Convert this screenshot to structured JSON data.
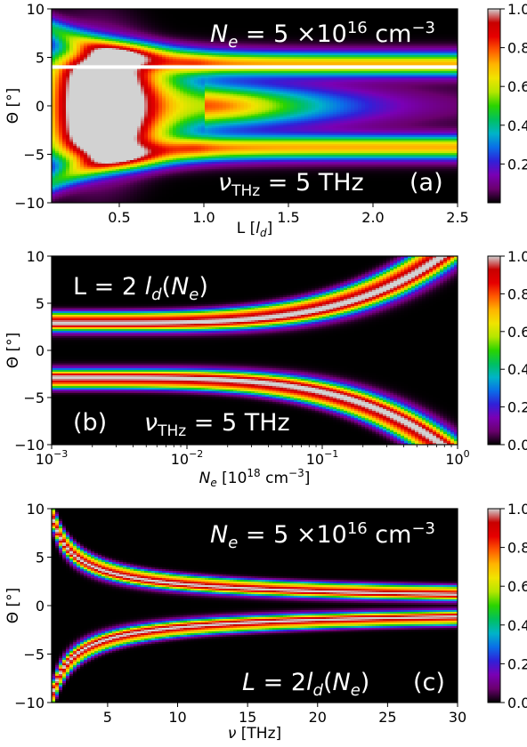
{
  "colormap": [
    "#000000",
    "#6a006e",
    "#7a00b4",
    "#3020d8",
    "#0a6ee8",
    "#00b4c8",
    "#00c060",
    "#2ad400",
    "#b4e600",
    "#f0e400",
    "#ffb400",
    "#ff5a00",
    "#e60000",
    "#c80000",
    "#d2d2d2"
  ],
  "chart_data": [
    {
      "type": "heatmap",
      "panel": "(a)",
      "xlabel": "L [l_d]",
      "ylabel": "Θ [°]",
      "xlim": [
        0.1,
        2.5
      ],
      "ylim": [
        -10,
        10
      ],
      "xscale": "linear",
      "xticks": [
        "0.5",
        "1.0",
        "1.5",
        "2.0",
        "2.5"
      ],
      "xtick_values": [
        0.5,
        1.0,
        1.5,
        2.0,
        2.5
      ],
      "yticks": [
        "−10",
        "−5",
        "0",
        "5",
        "10"
      ],
      "ytick_values": [
        -10,
        -5,
        0,
        5,
        10
      ],
      "colorbar": {
        "range": [
          0,
          1
        ],
        "ticks": [
          "0.2",
          "0.4",
          "0.6",
          "0.8",
          "1.0"
        ],
        "tick_values": [
          0.2,
          0.4,
          0.6,
          0.8,
          1.0
        ]
      },
      "annotations": {
        "top": "Ne = 5 ×10^16 cm^-3",
        "nu": "νTHz = 5 THz",
        "label": "(a)"
      },
      "highlight_line": {
        "theta": 4,
        "color": "#ffffff"
      },
      "model": {
        "kind": "panelA"
      }
    },
    {
      "type": "heatmap",
      "panel": "(b)",
      "xlabel": "Ne [10^18 cm^-3]",
      "ylabel": "Θ [°]",
      "xlim": [
        0.001,
        1
      ],
      "ylim": [
        -10,
        10
      ],
      "xscale": "log",
      "xticks": [
        "10^-3",
        "10^-2",
        "10^-1",
        "10^0"
      ],
      "xtick_values": [
        0.001,
        0.01,
        0.1,
        1
      ],
      "yticks": [
        "−10",
        "−5",
        "0",
        "5",
        "10"
      ],
      "ytick_values": [
        -10,
        -5,
        0,
        5,
        10
      ],
      "colorbar": {
        "range": [
          0,
          1
        ],
        "ticks": [
          "0.0",
          "0.2",
          "0.4",
          "0.6",
          "0.8",
          "1.0"
        ],
        "tick_values": [
          0,
          0.2,
          0.4,
          0.6,
          0.8,
          1.0
        ]
      },
      "annotations": {
        "top": "L = 2 ld(Ne)",
        "nu": "νTHz = 5 THz",
        "label": "(b)"
      },
      "model": {
        "kind": "panelB",
        "theta0": 2.7,
        "theta_max": 11,
        "width": 0.55
      }
    },
    {
      "type": "heatmap",
      "panel": "(c)",
      "xlabel": "ν [THz]",
      "ylabel": "Θ [°]",
      "xlim": [
        1,
        30
      ],
      "ylim": [
        -10,
        10
      ],
      "xscale": "linear",
      "xticks": [
        "5",
        "10",
        "15",
        "20",
        "25",
        "30"
      ],
      "xtick_values": [
        5,
        10,
        15,
        20,
        25,
        30
      ],
      "yticks": [
        "−10",
        "−5",
        "0",
        "5",
        "10"
      ],
      "ytick_values": [
        -10,
        -5,
        0,
        5,
        10
      ],
      "colorbar": {
        "range": [
          0,
          1
        ],
        "ticks": [
          "0.0",
          "0.2",
          "0.4",
          "0.6",
          "0.8",
          "1.0"
        ],
        "tick_values": [
          0,
          0.2,
          0.4,
          0.6,
          0.8,
          1.0
        ]
      },
      "annotations": {
        "top": "Ne = 5 ×10^16 cm^-3",
        "nu": "",
        "label": "(c)",
        "bottom": "L = 2ld(Ne)"
      },
      "model": {
        "kind": "panelC",
        "coef": 9.4,
        "power": 0.62,
        "width": 0.7
      }
    }
  ]
}
